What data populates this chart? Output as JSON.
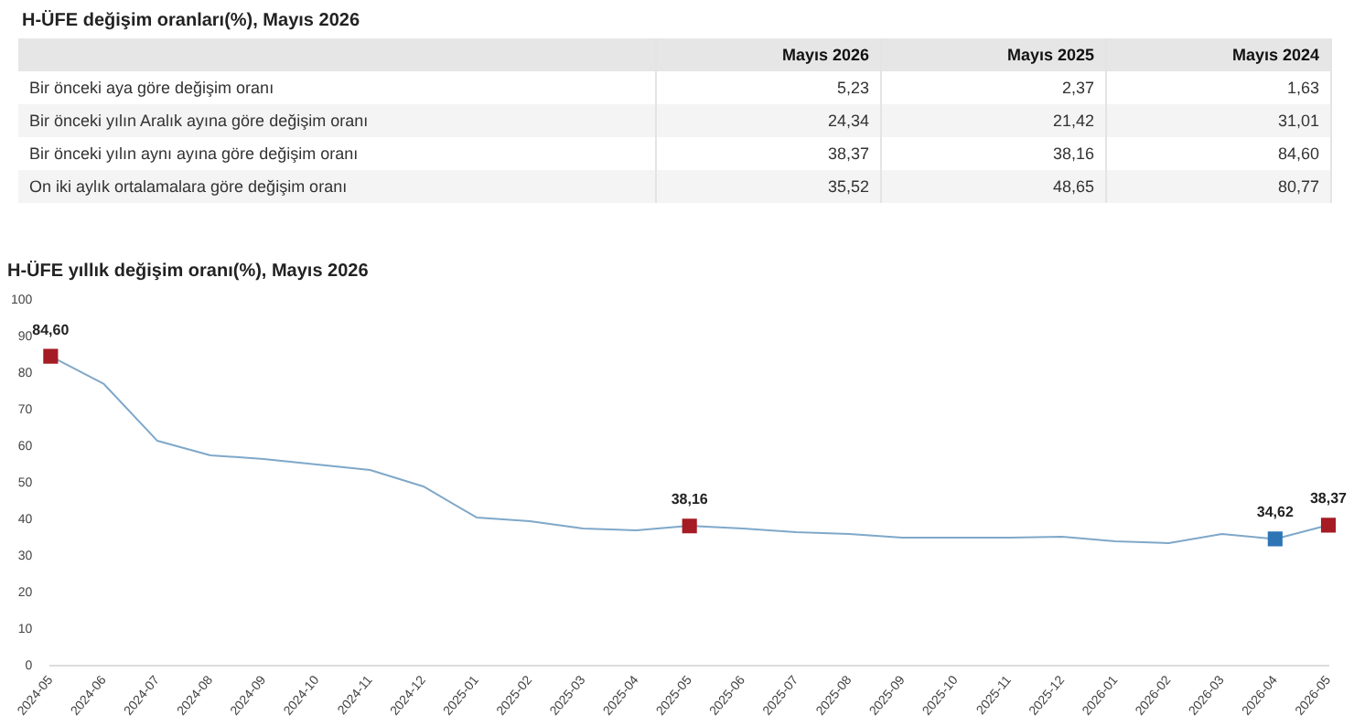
{
  "chart_data": [
    {
      "type": "other",
      "title": "H-ÜFE değişim oranları(%), Mayıs 2026",
      "annotations": [
        "Mayıs 2026",
        "Mayıs 2025",
        "Mayıs 2024",
        "Bir önceki aya göre değişim oranı",
        "5,23",
        "2,37",
        "1,63",
        "Bir önceki yılın Aralık ayına göre değişim oranı",
        "24,34",
        "21,42",
        "31,01",
        "Bir önceki yılın aynı ayına göre değişim oranı",
        "38,37",
        "38,16",
        "84,60",
        "On iki aylık ortalamalara göre değişim oranı",
        "35,52",
        "48,65",
        "80,77"
      ]
    },
    {
      "type": "line",
      "title": "H-ÜFE yıllık değişim oranı(%), Mayıs 2026",
      "categories": [
        "2024-05",
        "2024-06",
        "2024-07",
        "2024-08",
        "2024-09",
        "2024-10",
        "2024-11",
        "2024-12",
        "2025-01",
        "2025-02",
        "2025-03",
        "2025-04",
        "2025-05",
        "2025-06",
        "2025-07",
        "2025-08",
        "2025-09",
        "2025-10",
        "2025-11",
        "2025-12",
        "2026-01",
        "2026-02",
        "2026-03",
        "2026-04",
        "2026-05"
      ],
      "ylim": [
        0,
        100
      ],
      "yticks": [
        0,
        10,
        20,
        30,
        40,
        50,
        60,
        70,
        80,
        90,
        100
      ],
      "grid": false,
      "legend": false,
      "series": [
        {
          "type": "line",
          "color": "#7fa8c9",
          "marker": "none",
          "values": [
            84.6,
            77,
            61.5,
            57.5,
            56.5,
            55,
            53.5,
            49,
            40.5,
            39.5,
            37.5,
            37,
            38.2,
            37.5,
            36.5,
            36,
            35,
            35,
            35,
            35.2,
            34,
            33.5,
            36,
            34.6,
            38.4
          ]
        },
        {
          "type": "scatter",
          "marker": "square",
          "values": [
            84.6,
            null,
            null,
            null,
            null,
            null,
            null,
            null,
            null,
            null,
            null,
            null,
            38.16,
            null,
            null,
            null,
            null,
            null,
            null,
            null,
            null,
            null,
            null,
            34.62,
            38.37
          ],
          "colors": [
            "#a51c24",
            null,
            null,
            null,
            null,
            null,
            null,
            null,
            null,
            null,
            null,
            null,
            "#a51c24",
            null,
            null,
            null,
            null,
            null,
            null,
            null,
            null,
            null,
            null,
            "#2e75b6",
            "#a51c24"
          ],
          "value_labels": [
            "84,60",
            null,
            null,
            null,
            null,
            null,
            null,
            null,
            null,
            null,
            null,
            null,
            "38,16",
            null,
            null,
            null,
            null,
            null,
            null,
            null,
            null,
            null,
            null,
            "34,62",
            "38,37"
          ]
        }
      ]
    }
  ]
}
